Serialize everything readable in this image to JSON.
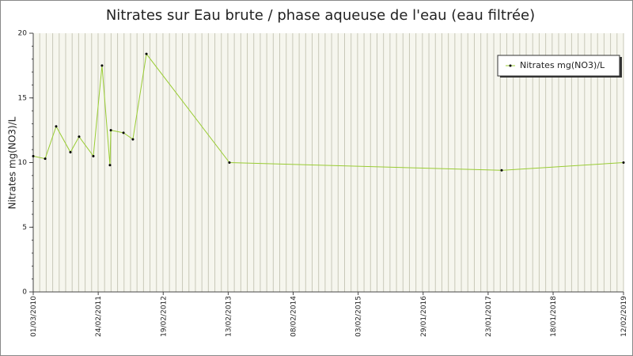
{
  "chart_data": {
    "type": "line",
    "title": "Nitrates sur Eau brute / phase aqueuse de l'eau (eau filtrée)",
    "y_label": "Nitrates mg(NO3)/L",
    "x": [
      "01/03/2010",
      "06/05/2010",
      "06/07/2010",
      "23/09/2010",
      "10/11/2010",
      "28/01/2011",
      "17/03/2011",
      "30/04/2011",
      "05/05/2011",
      "14/07/2011",
      "04/09/2011",
      "18/11/2011",
      "20/02/2013",
      "08/04/2017",
      "12/02/2019"
    ],
    "series": [
      {
        "name": "Nitrates mg(NO3)/L",
        "color": "#99cc33",
        "values": [
          10.5,
          10.3,
          12.8,
          10.8,
          12.0,
          10.5,
          17.5,
          9.8,
          12.5,
          12.3,
          11.8,
          18.4,
          10.0,
          9.4,
          10.0
        ]
      }
    ],
    "xlim": [
      "01/03/2010",
      "12/02/2019"
    ],
    "xticks": [
      "01/03/2010",
      "24/02/2011",
      "19/02/2012",
      "13/02/2013",
      "08/02/2014",
      "03/02/2015",
      "29/01/2016",
      "23/01/2017",
      "18/01/2018",
      "12/02/2019"
    ],
    "ylim": [
      0,
      20
    ],
    "yticks": [
      0,
      5,
      10,
      15,
      20
    ],
    "grid": true,
    "legend": "top-right"
  }
}
